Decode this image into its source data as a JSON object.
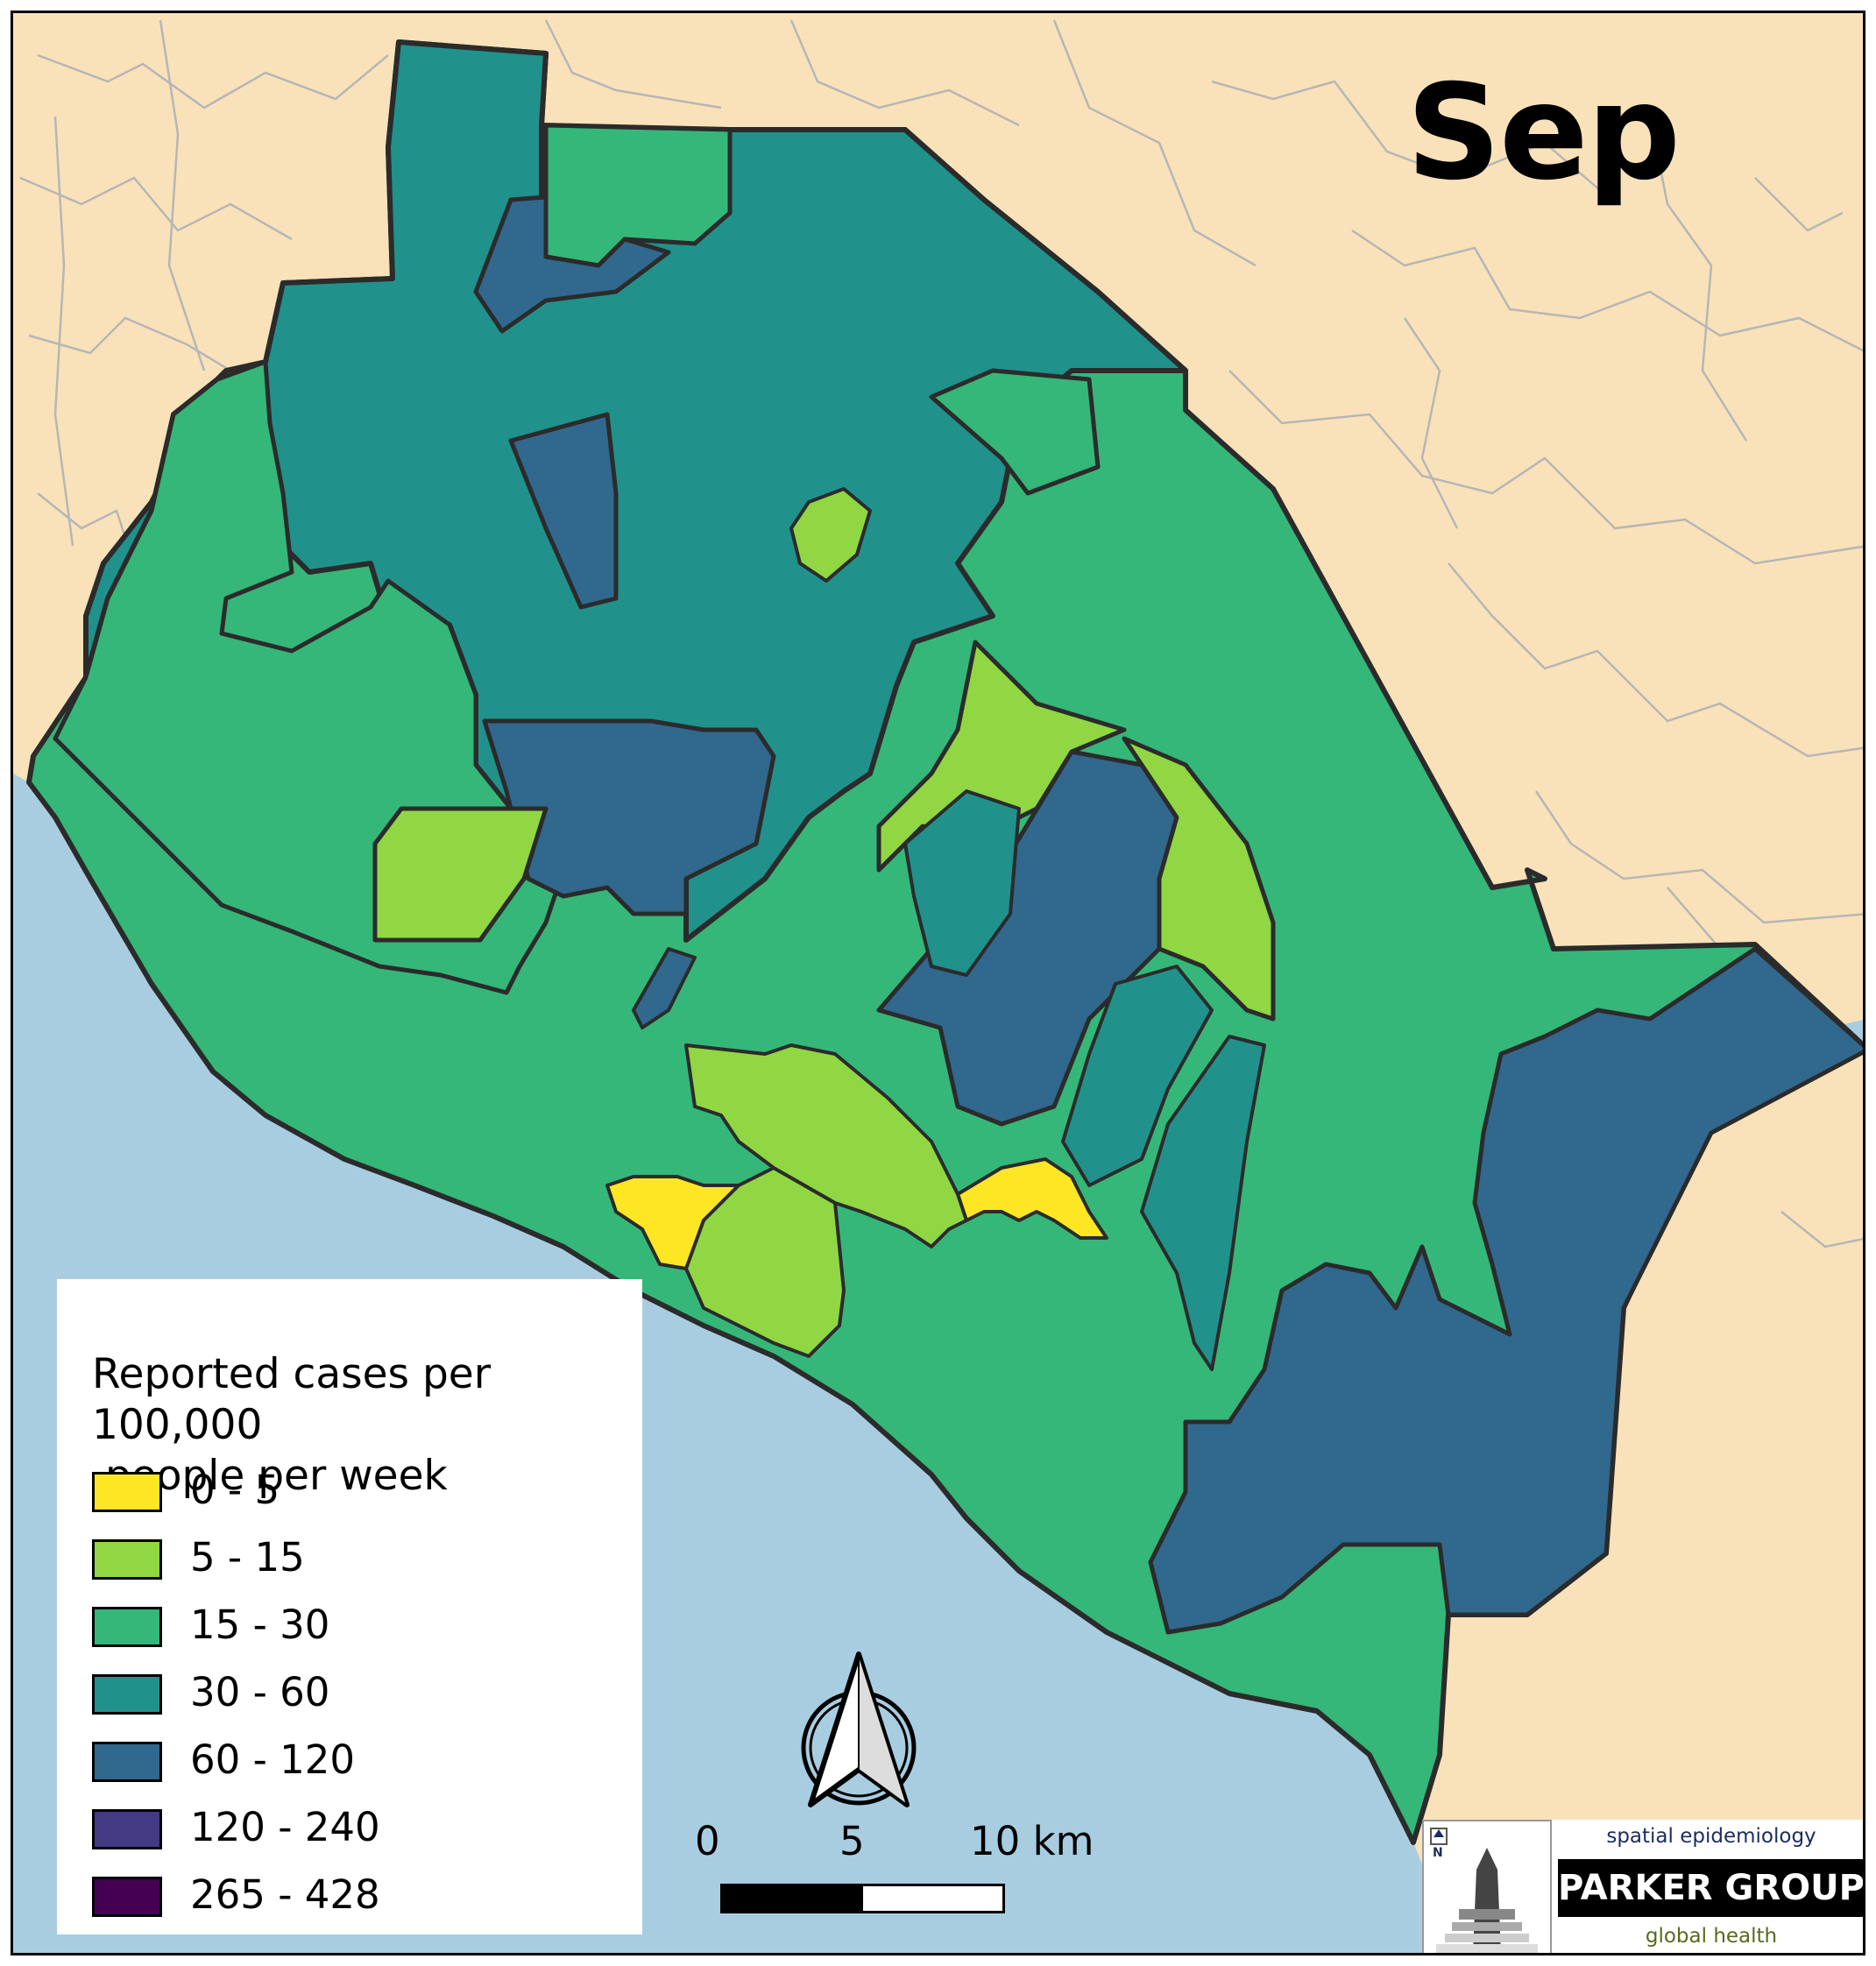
{
  "map": {
    "title": "Sep",
    "colors": {
      "ocean": "#a9cde0",
      "land": "#f9e2b9",
      "outline": "#2b2b2b",
      "minor_boundary": "#b6b6b6"
    }
  },
  "legend": {
    "title": "Reported cases per 100,000\n people per week",
    "items": [
      {
        "label": "0 - 5",
        "color": "#fde725"
      },
      {
        "label": "5 - 15",
        "color": "#90d743"
      },
      {
        "label": "15 - 30",
        "color": "#35b779"
      },
      {
        "label": "30 - 60",
        "color": "#21918c"
      },
      {
        "label": "60 - 120",
        "color": "#31688e"
      },
      {
        "label": "120 - 240",
        "color": "#443983"
      },
      {
        "label": "265 - 428",
        "color": "#440154"
      }
    ]
  },
  "scale": {
    "ticks": [
      "0",
      "5",
      "10 km"
    ]
  },
  "logo": {
    "top_text": "spatial epidemiology",
    "main_text": "PARKER GROUP",
    "bottom_text": "global health",
    "icon_letter": "N"
  }
}
